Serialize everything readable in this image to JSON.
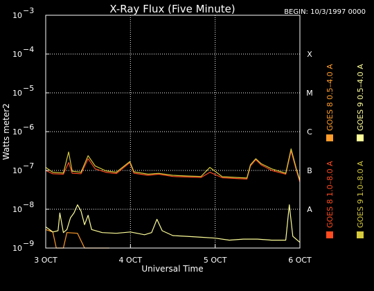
{
  "chart_data": {
    "type": "line",
    "title": "X-Ray Flux (Five Minute)",
    "begin_label": "BEGIN: 10/3/1997 0000",
    "xlabel": "Universal Time",
    "ylabel": "Watts meter2",
    "y_scale": "log",
    "ylim": [
      1e-09,
      0.001
    ],
    "y_ticks": [
      {
        "value": 0.001,
        "base": "10",
        "exp": "−3"
      },
      {
        "value": 0.0001,
        "base": "10",
        "exp": "−4"
      },
      {
        "value": 1e-05,
        "base": "10",
        "exp": "−5"
      },
      {
        "value": 1e-06,
        "base": "10",
        "exp": "−6"
      },
      {
        "value": 1e-07,
        "base": "10",
        "exp": "−7"
      },
      {
        "value": 1e-08,
        "base": "10",
        "exp": "−8"
      },
      {
        "value": 1e-09,
        "base": "10",
        "exp": "−9"
      }
    ],
    "xlim": [
      "1997-10-03 00:00",
      "1997-10-06 00:00"
    ],
    "x_ticks": [
      {
        "value": "1997-10-03",
        "label": "3 OCT"
      },
      {
        "value": "1997-10-04",
        "label": "4 OCT"
      },
      {
        "value": "1997-10-05",
        "label": "5 OCT"
      },
      {
        "value": "1997-10-06",
        "label": "6 OCT"
      }
    ],
    "flare_classes": [
      {
        "label": "X",
        "value": 0.0001
      },
      {
        "label": "M",
        "value": 1e-05
      },
      {
        "label": "C",
        "value": 1e-06
      },
      {
        "label": "B",
        "value": 1e-07
      },
      {
        "label": "A",
        "value": 1e-08
      }
    ],
    "grid": "dotted horizontal at each decade, dotted vertical at day boundaries",
    "legend_position": "right, vertical",
    "series": [
      {
        "name": "GOES 8  1.0–8.0 A",
        "color": "#ff4b1f",
        "points": [
          [
            "1997-10-03 00:00",
            1e-07
          ],
          [
            "1997-10-03 02:00",
            8.2e-08
          ],
          [
            "1997-10-03 05:00",
            8e-08
          ],
          [
            "1997-10-03 06:30",
            1.6e-07
          ],
          [
            "1997-10-03 07:30",
            8.5e-08
          ],
          [
            "1997-10-03 10:00",
            8.2e-08
          ],
          [
            "1997-10-03 12:00",
            2e-07
          ],
          [
            "1997-10-03 14:00",
            1.1e-07
          ],
          [
            "1997-10-03 17:00",
            9e-08
          ],
          [
            "1997-10-03 20:00",
            8.3e-08
          ],
          [
            "1997-10-03 23:50",
            1.6e-07
          ],
          [
            "1997-10-04 01:00",
            8.5e-08
          ],
          [
            "1997-10-04 05:00",
            7.5e-08
          ],
          [
            "1997-10-04 08:00",
            8e-08
          ],
          [
            "1997-10-04 12:00",
            7e-08
          ],
          [
            "1997-10-04 16:00",
            6.8e-08
          ],
          [
            "1997-10-04 20:00",
            6.6e-08
          ],
          [
            "1997-10-04 22:30",
            9e-08
          ],
          [
            "1997-10-05 02:00",
            6.5e-08
          ],
          [
            "1997-10-05 06:00",
            6.2e-08
          ],
          [
            "1997-10-05 09:00",
            6e-08
          ],
          [
            "1997-10-05 10:00",
            1.3e-07
          ],
          [
            "1997-10-05 11:30",
            1.9e-07
          ],
          [
            "1997-10-05 13:00",
            1.4e-07
          ],
          [
            "1997-10-05 16:00",
            1e-07
          ],
          [
            "1997-10-05 20:00",
            8e-08
          ],
          [
            "1997-10-05 21:30",
            3.2e-07
          ],
          [
            "1997-10-05 23:00",
            1e-07
          ],
          [
            "1997-10-06 00:00",
            5e-08
          ]
        ]
      },
      {
        "name": "GOES 8  0.5–4.0 A",
        "color": "#ff9c2a",
        "points": [
          [
            "1997-10-03 00:00",
            3e-09
          ],
          [
            "1997-10-03 02:00",
            2.6e-09
          ],
          [
            "1997-10-03 03:00",
            1e-09
          ],
          [
            "1997-10-03 05:00",
            1e-09
          ],
          [
            "1997-10-03 06:00",
            2.5e-09
          ],
          [
            "1997-10-03 09:00",
            2.4e-09
          ],
          [
            "1997-10-03 11:00",
            1e-09
          ],
          [
            "1997-10-03 17:00",
            1e-09
          ],
          [
            "1997-10-03 18:00",
            1e-09
          ]
        ]
      },
      {
        "name": "GOES 9  1.0–8.0 A",
        "color": "#d6c93a",
        "points": [
          [
            "1997-10-03 00:00",
            1.2e-07
          ],
          [
            "1997-10-03 02:00",
            9e-08
          ],
          [
            "1997-10-03 05:00",
            8.6e-08
          ],
          [
            "1997-10-03 06:30",
            3e-07
          ],
          [
            "1997-10-03 07:30",
            9.5e-08
          ],
          [
            "1997-10-03 10:00",
            9e-08
          ],
          [
            "1997-10-03 12:00",
            2.4e-07
          ],
          [
            "1997-10-03 14:00",
            1.3e-07
          ],
          [
            "1997-10-03 17:00",
            9.8e-08
          ],
          [
            "1997-10-03 20:00",
            9e-08
          ],
          [
            "1997-10-03 23:50",
            1.7e-07
          ],
          [
            "1997-10-04 01:00",
            9.2e-08
          ],
          [
            "1997-10-04 05:00",
            8e-08
          ],
          [
            "1997-10-04 08:00",
            8.4e-08
          ],
          [
            "1997-10-04 12:00",
            7.5e-08
          ],
          [
            "1997-10-04 16:00",
            7.2e-08
          ],
          [
            "1997-10-04 20:00",
            7e-08
          ],
          [
            "1997-10-04 22:30",
            1.2e-07
          ],
          [
            "1997-10-05 02:00",
            6.9e-08
          ],
          [
            "1997-10-05 06:00",
            6.6e-08
          ],
          [
            "1997-10-05 09:00",
            6.4e-08
          ],
          [
            "1997-10-05 10:00",
            1.4e-07
          ],
          [
            "1997-10-05 11:30",
            2e-07
          ],
          [
            "1997-10-05 13:00",
            1.5e-07
          ],
          [
            "1997-10-05 16:00",
            1.1e-07
          ],
          [
            "1997-10-05 20:00",
            8.5e-08
          ],
          [
            "1997-10-05 21:30",
            3.6e-07
          ],
          [
            "1997-10-05 23:00",
            1.1e-07
          ],
          [
            "1997-10-06 00:00",
            5.5e-08
          ]
        ]
      },
      {
        "name": "GOES 9  0.5–4.0 A",
        "color": "#ffff99",
        "points": [
          [
            "1997-10-03 00:00",
            3.5e-09
          ],
          [
            "1997-10-03 02:00",
            2.6e-09
          ],
          [
            "1997-10-03 03:30",
            2.8e-09
          ],
          [
            "1997-10-03 04:00",
            8e-09
          ],
          [
            "1997-10-03 05:00",
            2.5e-09
          ],
          [
            "1997-10-03 06:00",
            3e-09
          ],
          [
            "1997-10-03 07:00",
            6e-09
          ],
          [
            "1997-10-03 08:00",
            8e-09
          ],
          [
            "1997-10-03 09:00",
            1.3e-08
          ],
          [
            "1997-10-03 10:00",
            9e-09
          ],
          [
            "1997-10-03 11:00",
            4e-09
          ],
          [
            "1997-10-03 12:00",
            7e-09
          ],
          [
            "1997-10-03 13:00",
            3e-09
          ],
          [
            "1997-10-03 16:00",
            2.5e-09
          ],
          [
            "1997-10-03 20:00",
            2.4e-09
          ],
          [
            "1997-10-04 00:00",
            2.6e-09
          ],
          [
            "1997-10-04 04:00",
            2.2e-09
          ],
          [
            "1997-10-04 06:00",
            2.5e-09
          ],
          [
            "1997-10-04 07:30",
            5.5e-09
          ],
          [
            "1997-10-04 09:00",
            2.8e-09
          ],
          [
            "1997-10-04 12:00",
            2.1e-09
          ],
          [
            "1997-10-04 16:00",
            2e-09
          ],
          [
            "1997-10-04 20:00",
            1.9e-09
          ],
          [
            "1997-10-05 00:00",
            1.8e-09
          ],
          [
            "1997-10-05 04:00",
            1.6e-09
          ],
          [
            "1997-10-05 08:00",
            1.7e-09
          ],
          [
            "1997-10-05 12:00",
            1.7e-09
          ],
          [
            "1997-10-05 16:00",
            1.6e-09
          ],
          [
            "1997-10-05 20:00",
            1.6e-09
          ],
          [
            "1997-10-05 21:00",
            1.3e-08
          ],
          [
            "1997-10-05 22:00",
            2e-09
          ],
          [
            "1997-10-06 00:00",
            1.4e-09
          ]
        ]
      }
    ]
  }
}
